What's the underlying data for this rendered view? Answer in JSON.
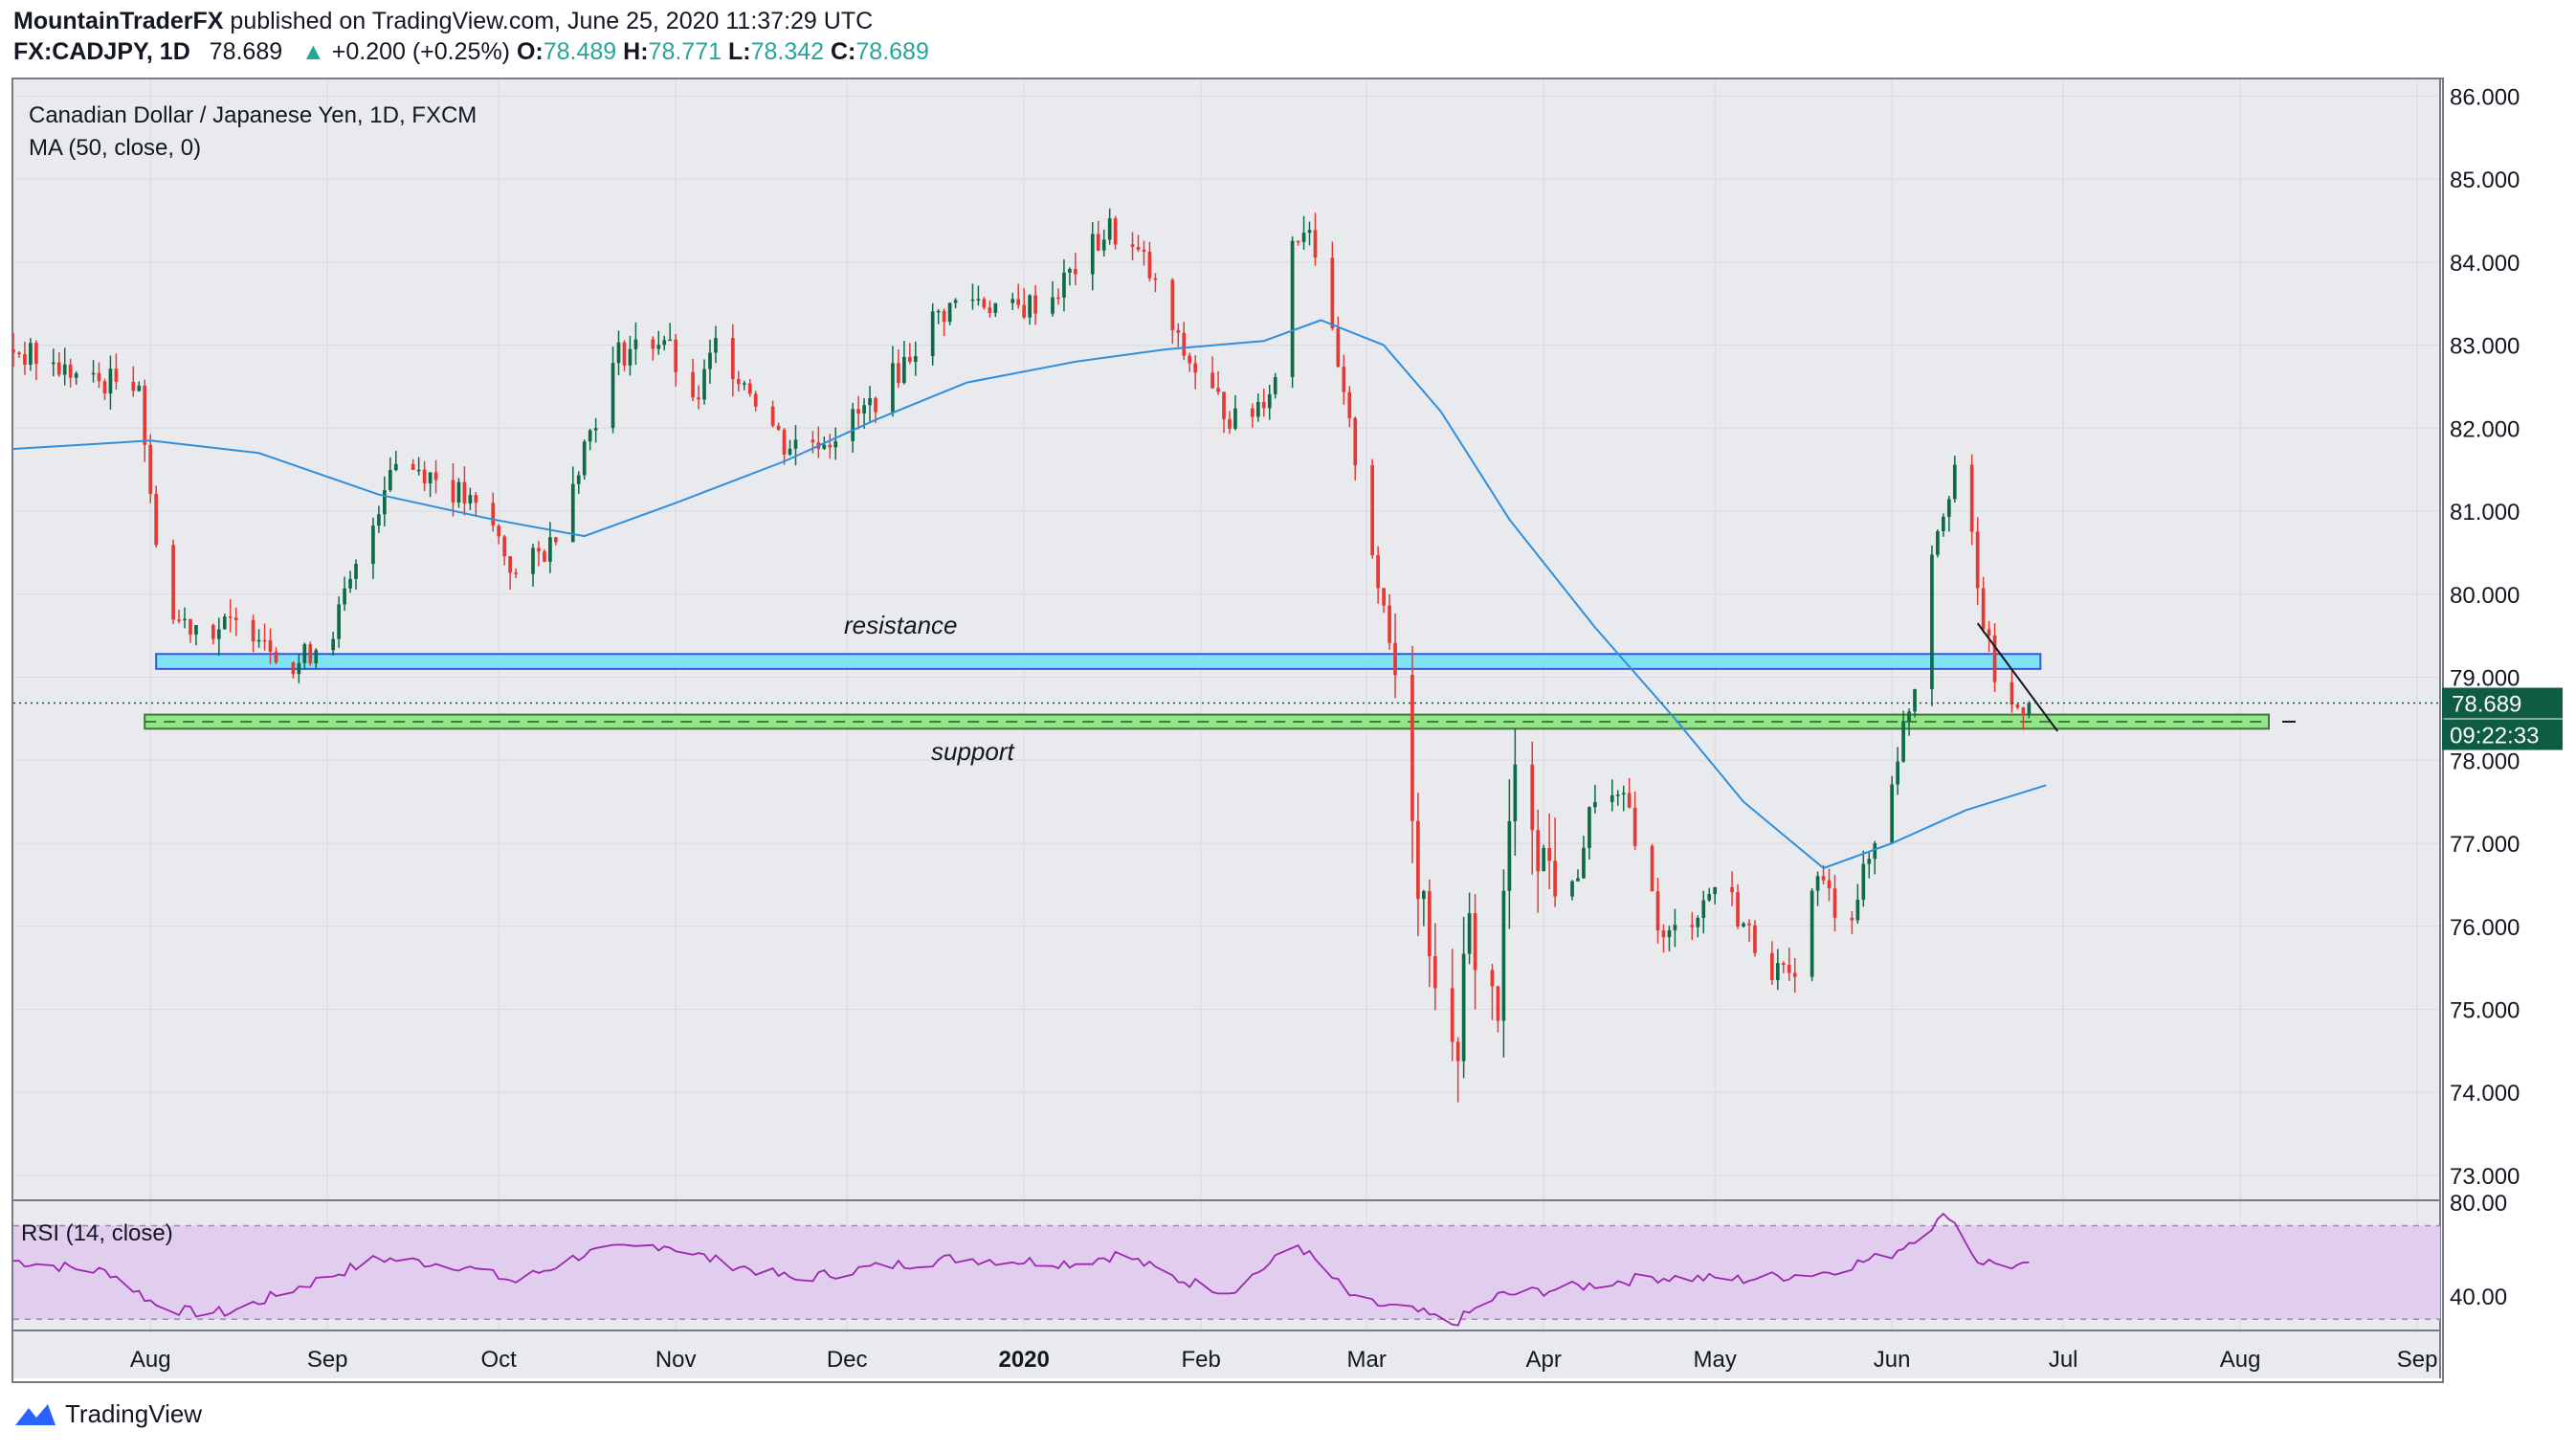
{
  "header": {
    "publisher": "MountainTraderFX",
    "published_text": " published on TradingView.com, June 25, 2020 11:37:29 UTC",
    "symbol": "FX:CADJPY, 1D",
    "last": "78.689",
    "change": "+0.200 (+0.25%)",
    "open_label": "O:",
    "open": "78.489",
    "high_label": "H:",
    "high": "78.771",
    "low_label": "L:",
    "low": "78.342",
    "close_label": "C:",
    "close": "78.689"
  },
  "legend": {
    "title": "Canadian Dollar / Japanese Yen, 1D, FXCM",
    "ma": "MA (50, close, 0)",
    "rsi": "RSI (14, close)"
  },
  "price_tag": "78.689",
  "countdown": "09:22:33",
  "footer": {
    "brand": "TradingView"
  },
  "colors": {
    "up": "#26a69a",
    "up_body": "#0e6b46",
    "down": "#e53935",
    "ma": "#2f8fdd",
    "rsi": "#9c27b0",
    "rsi_band": "#e1cdee",
    "resistance_fill": "#7fe3f5",
    "resistance_stroke": "#3b54e0",
    "support_fill": "#92e58a",
    "support_stroke": "#3b7a2e",
    "chart_bg": "#e9eaee"
  },
  "chart_data": {
    "type": "candlestick",
    "title": "Canadian Dollar / Japanese Yen, 1D, FXCM",
    "y_ticks": [
      "86.000",
      "85.000",
      "84.000",
      "83.000",
      "82.000",
      "81.000",
      "80.000",
      "79.000",
      "78.000",
      "77.000",
      "76.000",
      "75.000",
      "74.000",
      "73.000"
    ],
    "ylim": [
      72.7,
      86.2
    ],
    "x_ticks": [
      "Aug",
      "Sep",
      "Oct",
      "Nov",
      "Dec",
      "2020",
      "Feb",
      "Mar",
      "Apr",
      "May",
      "Jun",
      "Jul",
      "Aug",
      "Sep"
    ],
    "x_tick_values": [
      "2019-08-01",
      "2019-09-01",
      "2019-10-01",
      "2019-11-01",
      "2019-12-01",
      "2020-01-01",
      "2020-02-01",
      "2020-03-01",
      "2020-04-01",
      "2020-05-01",
      "2020-06-01",
      "2020-07-01",
      "2020-08-01",
      "2020-09-01"
    ],
    "x_range": [
      "2019-07-08",
      "2020-09-05"
    ],
    "close_path": [
      [
        "2019-07-08",
        82.95
      ],
      [
        "2019-07-22",
        82.55
      ],
      [
        "2019-07-30",
        82.6
      ],
      [
        "2019-08-01",
        81.1
      ],
      [
        "2019-08-05",
        79.7
      ],
      [
        "2019-08-12",
        79.6
      ],
      [
        "2019-08-20",
        79.6
      ],
      [
        "2019-08-26",
        79.1
      ],
      [
        "2019-09-02",
        79.6
      ],
      [
        "2019-09-08",
        80.6
      ],
      [
        "2019-09-12",
        81.6
      ],
      [
        "2019-09-18",
        81.5
      ],
      [
        "2019-09-24",
        81.2
      ],
      [
        "2019-09-30",
        80.8
      ],
      [
        "2019-10-04",
        80.2
      ],
      [
        "2019-10-10",
        80.6
      ],
      [
        "2019-10-16",
        81.8
      ],
      [
        "2019-10-22",
        82.9
      ],
      [
        "2019-10-30",
        83.1
      ],
      [
        "2019-11-04",
        82.2
      ],
      [
        "2019-11-08",
        83.0
      ],
      [
        "2019-11-14",
        82.5
      ],
      [
        "2019-11-20",
        81.8
      ],
      [
        "2019-11-28",
        81.9
      ],
      [
        "2019-12-04",
        82.2
      ],
      [
        "2019-12-10",
        82.7
      ],
      [
        "2019-12-16",
        83.3
      ],
      [
        "2019-12-22",
        83.6
      ],
      [
        "2019-12-30",
        83.4
      ],
      [
        "2020-01-06",
        83.6
      ],
      [
        "2020-01-12",
        84.1
      ],
      [
        "2020-01-16",
        84.4
      ],
      [
        "2020-01-22",
        84.0
      ],
      [
        "2020-01-28",
        83.0
      ],
      [
        "2020-02-03",
        82.4
      ],
      [
        "2020-02-08",
        82.0
      ],
      [
        "2020-02-14",
        82.6
      ],
      [
        "2020-02-17",
        84.3
      ],
      [
        "2020-02-20",
        84.5
      ],
      [
        "2020-02-26",
        82.3
      ],
      [
        "2020-03-01",
        81.0
      ],
      [
        "2020-03-04",
        79.7
      ],
      [
        "2020-03-08",
        78.4
      ],
      [
        "2020-03-10",
        76.7
      ],
      [
        "2020-03-13",
        75.6
      ],
      [
        "2020-03-16",
        74.2
      ],
      [
        "2020-03-19",
        75.9
      ],
      [
        "2020-03-24",
        75.0
      ],
      [
        "2020-03-26",
        77.2
      ],
      [
        "2020-03-28",
        78.0
      ],
      [
        "2020-04-01",
        76.8
      ],
      [
        "2020-04-06",
        76.4
      ],
      [
        "2020-04-10",
        77.6
      ],
      [
        "2020-04-16",
        77.4
      ],
      [
        "2020-04-22",
        75.8
      ],
      [
        "2020-04-28",
        76.2
      ],
      [
        "2020-05-02",
        76.6
      ],
      [
        "2020-05-06",
        76.0
      ],
      [
        "2020-05-10",
        75.6
      ],
      [
        "2020-05-14",
        75.3
      ],
      [
        "2020-05-19",
        76.6
      ],
      [
        "2020-05-24",
        76.0
      ],
      [
        "2020-05-30",
        77.2
      ],
      [
        "2020-06-03",
        78.4
      ],
      [
        "2020-06-06",
        79.2
      ],
      [
        "2020-06-08",
        80.6
      ],
      [
        "2020-06-11",
        81.3
      ],
      [
        "2020-06-13",
        81.8
      ],
      [
        "2020-06-16",
        80.0
      ],
      [
        "2020-06-19",
        79.0
      ],
      [
        "2020-06-22",
        78.6
      ],
      [
        "2020-06-25",
        78.69
      ]
    ],
    "ma50_path": [
      [
        "2019-07-08",
        81.75
      ],
      [
        "2019-08-01",
        81.85
      ],
      [
        "2019-08-20",
        81.7
      ],
      [
        "2019-09-10",
        81.2
      ],
      [
        "2019-09-30",
        80.9
      ],
      [
        "2019-10-16",
        80.7
      ],
      [
        "2019-11-01",
        81.1
      ],
      [
        "2019-11-20",
        81.6
      ],
      [
        "2019-12-06",
        82.1
      ],
      [
        "2019-12-22",
        82.55
      ],
      [
        "2020-01-10",
        82.8
      ],
      [
        "2020-01-26",
        82.95
      ],
      [
        "2020-02-12",
        83.05
      ],
      [
        "2020-02-22",
        83.3
      ],
      [
        "2020-03-04",
        83.0
      ],
      [
        "2020-03-14",
        82.2
      ],
      [
        "2020-03-26",
        80.9
      ],
      [
        "2020-04-10",
        79.6
      ],
      [
        "2020-04-24",
        78.5
      ],
      [
        "2020-05-06",
        77.5
      ],
      [
        "2020-05-20",
        76.7
      ],
      [
        "2020-06-01",
        77.0
      ],
      [
        "2020-06-14",
        77.4
      ],
      [
        "2020-06-28",
        77.7
      ]
    ],
    "rsi_path": [
      [
        "2019-07-08",
        55
      ],
      [
        "2019-07-25",
        50
      ],
      [
        "2019-08-02",
        36
      ],
      [
        "2019-08-08",
        33
      ],
      [
        "2019-08-15",
        33
      ],
      [
        "2019-08-25",
        42
      ],
      [
        "2019-09-10",
        56
      ],
      [
        "2019-09-24",
        53
      ],
      [
        "2019-10-04",
        46
      ],
      [
        "2019-10-16",
        58
      ],
      [
        "2019-10-30",
        62
      ],
      [
        "2019-11-08",
        55
      ],
      [
        "2019-11-22",
        47
      ],
      [
        "2019-12-05",
        52
      ],
      [
        "2019-12-20",
        56
      ],
      [
        "2020-01-10",
        54
      ],
      [
        "2020-01-18",
        58
      ],
      [
        "2020-01-28",
        47
      ],
      [
        "2020-02-06",
        42
      ],
      [
        "2020-02-18",
        62
      ],
      [
        "2020-02-28",
        38
      ],
      [
        "2020-03-10",
        33
      ],
      [
        "2020-03-16",
        28
      ],
      [
        "2020-03-24",
        40
      ],
      [
        "2020-04-04",
        43
      ],
      [
        "2020-04-20",
        48
      ],
      [
        "2020-05-06",
        47
      ],
      [
        "2020-05-20",
        50
      ],
      [
        "2020-06-01",
        58
      ],
      [
        "2020-06-08",
        70
      ],
      [
        "2020-06-11",
        75
      ],
      [
        "2020-06-16",
        55
      ],
      [
        "2020-06-25",
        52
      ]
    ],
    "rsi_ticks": [
      "80.00",
      "40.00"
    ],
    "rsi_band": [
      30,
      70
    ],
    "rsi_ylim": [
      26,
      80
    ],
    "zones": [
      {
        "name": "resistance",
        "low": 79.1,
        "high": 79.28,
        "start": "2019-08-02",
        "end": "2020-06-27"
      },
      {
        "name": "support",
        "low": 78.38,
        "high": 78.55,
        "start": "2019-07-31",
        "end": "2020-08-06"
      }
    ],
    "trendline": [
      [
        "2020-06-16",
        79.65
      ],
      [
        "2020-06-30",
        78.35
      ]
    ],
    "last_price": 78.689
  }
}
